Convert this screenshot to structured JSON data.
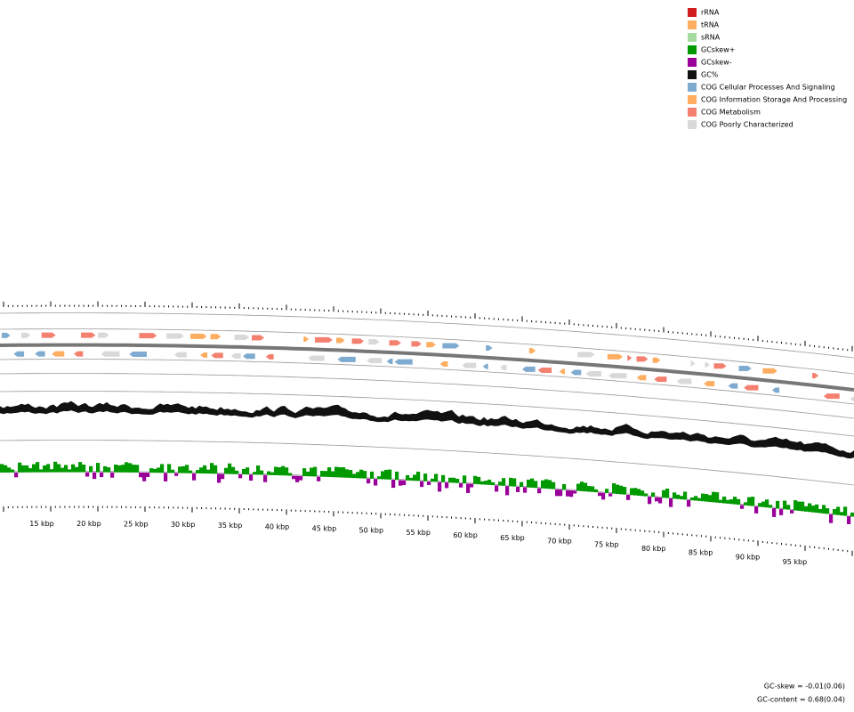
{
  "legend": [
    {
      "label": "rRNA",
      "color": "#d01c1c"
    },
    {
      "label": "tRNA",
      "color": "#fdae61"
    },
    {
      "label": "sRNA",
      "color": "#a6dba0"
    },
    {
      "label": "GCskew+",
      "color": "#009900"
    },
    {
      "label": "GCskew-",
      "color": "#990099"
    },
    {
      "label": "GC%",
      "color": "#111111"
    },
    {
      "label": "COG Cellular Processes And Signaling",
      "color": "#7fabd0"
    },
    {
      "label": "COG Information Storage And Processing",
      "color": "#fdae61"
    },
    {
      "label": "COG Metabolism",
      "color": "#f4806f"
    },
    {
      "label": "COG Poorly Characterized",
      "color": "#d9d9d9"
    }
  ],
  "scale": {
    "labels": [
      "15 kbp",
      "20 kbp",
      "25 kbp",
      "30 kbp",
      "35 kbp",
      "40 kbp",
      "45 kbp",
      "50 kbp",
      "55 kbp",
      "60 kbp",
      "65 kbp",
      "70 kbp",
      "75 kbp",
      "80 kbp",
      "85 kbp",
      "90 kbp",
      "95 kbp"
    ]
  },
  "footer": {
    "gc_skew": "GC-skew = -0.01(0.06)",
    "gc_content": "GC-content = 0.68(0.04)"
  }
}
